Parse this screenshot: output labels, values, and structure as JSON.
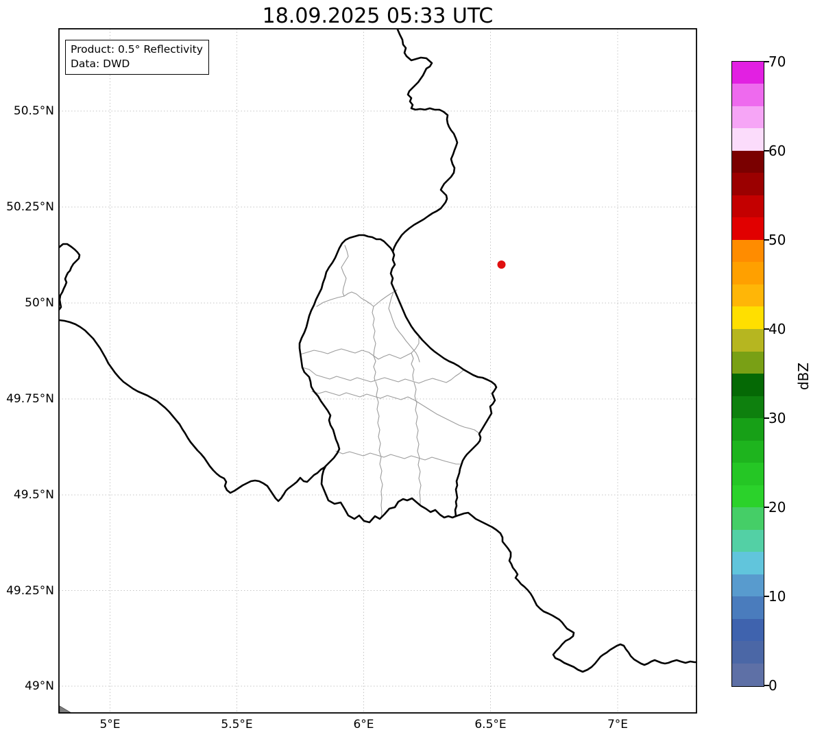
{
  "title": "18.09.2025 05:33 UTC",
  "info_box": {
    "line1": "Product: 0.5° Reflectivity",
    "line2": "Data: DWD"
  },
  "axes": {
    "x_ticks": [
      "5°E",
      "5.5°E",
      "6°E",
      "6.5°E",
      "7°E"
    ],
    "y_ticks": [
      "50.5°N",
      "50.25°N",
      "50°N",
      "49.75°N",
      "49.5°N",
      "49.25°N",
      "49°N"
    ]
  },
  "colorbar": {
    "label": "dBZ",
    "ticks_top_to_bottom": [
      "70",
      "60",
      "50",
      "40",
      "30",
      "20",
      "10",
      "0"
    ],
    "segments_bottom_to_top": [
      "#5e70a6",
      "#4b67a6",
      "#3f63ae",
      "#4a7cbd",
      "#589bce",
      "#61c5dc",
      "#53d0a5",
      "#45ce67",
      "#2bd22b",
      "#25c625",
      "#1eb41e",
      "#17a017",
      "#0e800e",
      "#056905",
      "#79a015",
      "#b6b620",
      "#ffdf00",
      "#ffb607",
      "#ffa000",
      "#ff8c00",
      "#e10000",
      "#c40000",
      "#9b0000",
      "#7a0000",
      "#fbdcfb",
      "#f6a5f6",
      "#ee6aee",
      "#e220e2"
    ]
  },
  "marker": {
    "color": "#e01010",
    "edge_color": "#990000"
  },
  "map_colors": {
    "country_border": "#000000",
    "district_border": "#9b9b9b",
    "grid": "#c4c4c4",
    "frame": "#000000",
    "corner_patch": "#7d7d7d"
  }
}
